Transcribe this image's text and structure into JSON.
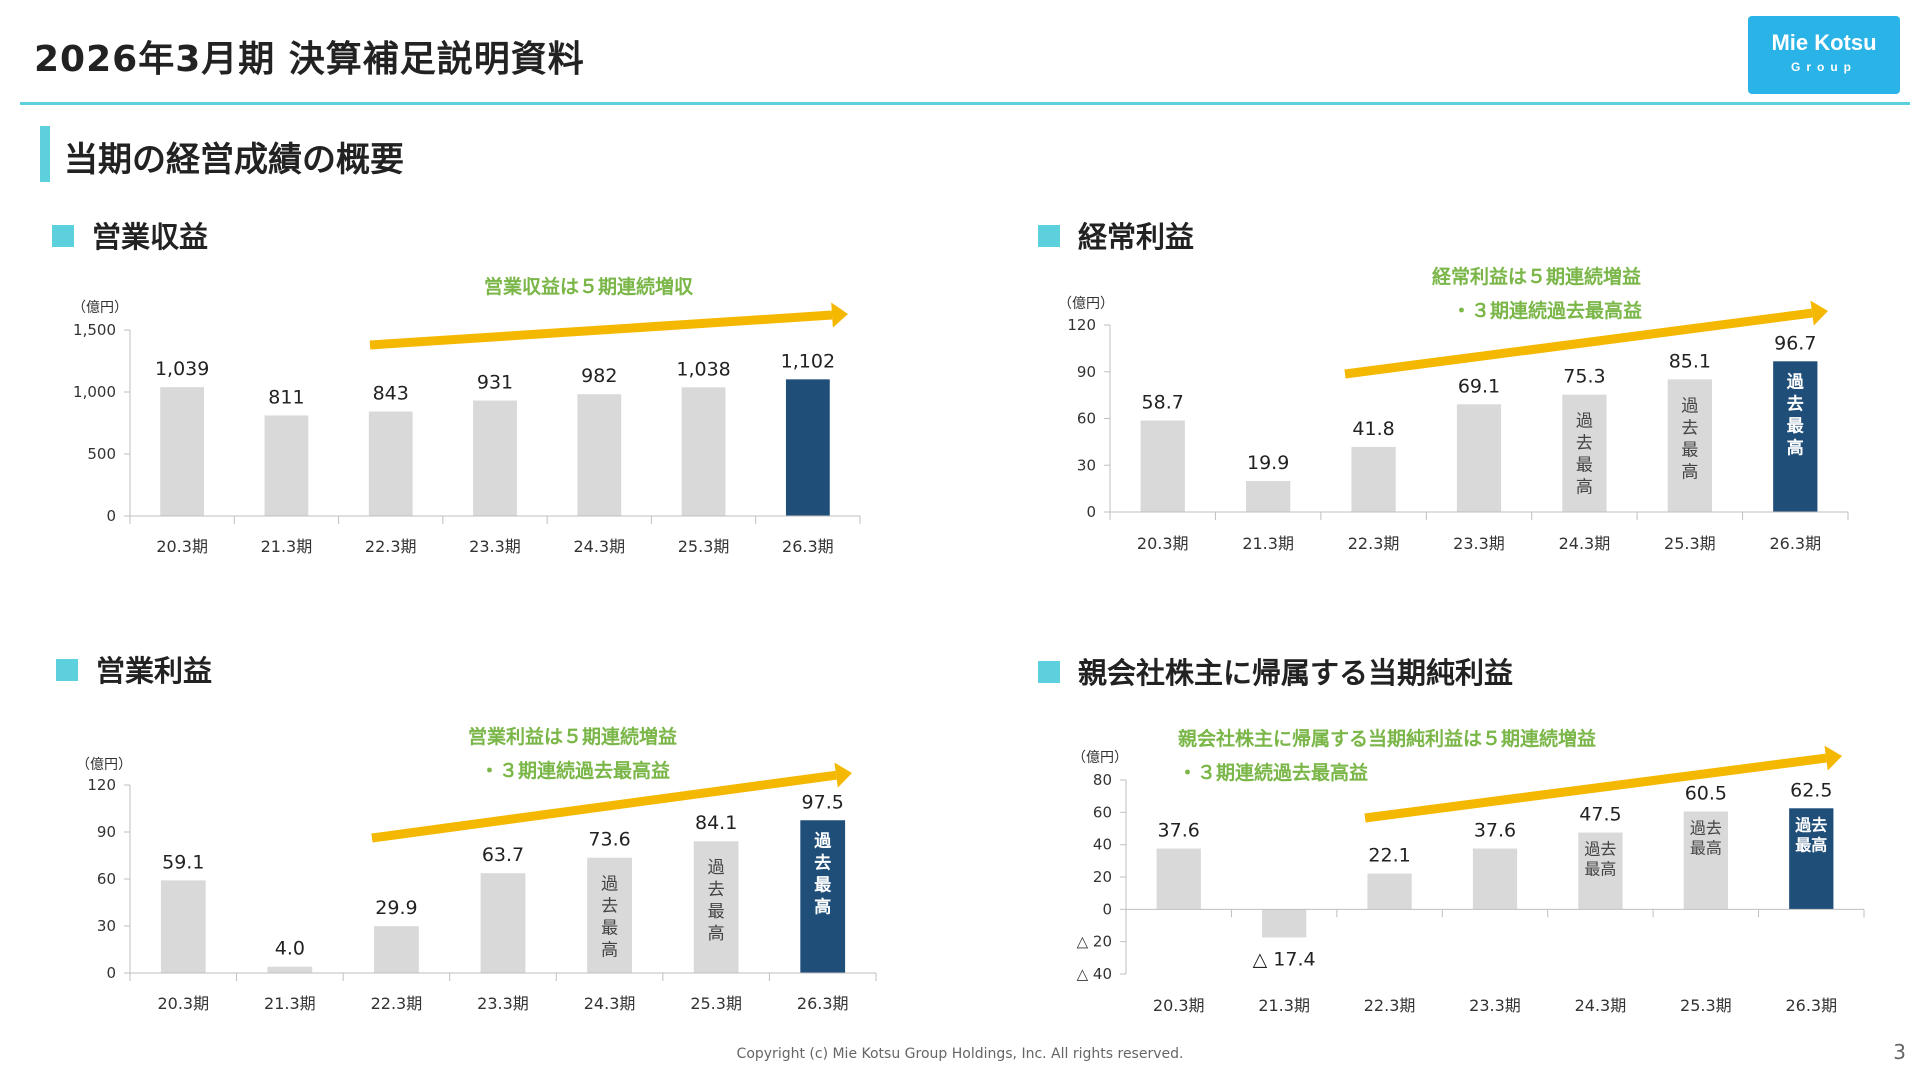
{
  "header": {
    "title": "2026年3月期 決算補足説明資料",
    "logo_line1": "Mie Kotsu",
    "logo_line2": "Group"
  },
  "section_title": "当期の経営成績の概要",
  "footer": "Copyright (c) Mie Kotsu Group Holdings, Inc. All rights reserved.",
  "page_number": "3",
  "colors": {
    "accent": "#5cd0dd",
    "bar_default": "#d9d9d9",
    "bar_highlight": "#1f4e79",
    "arrow": "#f5b800",
    "annotation": "#7ab648"
  },
  "panels": [
    {
      "title": "営業収益",
      "annotation": [
        "営業収益は５期連続増収"
      ]
    },
    {
      "title": "経常利益",
      "annotation": [
        "経常利益は５期連続増益",
        "・３期連続過去最高益"
      ]
    },
    {
      "title": "営業利益",
      "annotation": [
        "営業利益は５期連続増益",
        "・３期連続過去最高益"
      ]
    },
    {
      "title": "親会社株主に帰属する当期純利益",
      "annotation": [
        "親会社株主に帰属する当期純利益は５期連続増益",
        "・３期連続過去最高益"
      ]
    }
  ],
  "chart_data": [
    {
      "type": "bar",
      "title": "営業収益",
      "unit_label": "（億円）",
      "categories": [
        "20.3期",
        "21.3期",
        "22.3期",
        "23.3期",
        "24.3期",
        "25.3期",
        "26.3期"
      ],
      "values": [
        1039,
        811,
        843,
        931,
        982,
        1038,
        1102
      ],
      "value_labels": [
        "1,039",
        "811",
        "843",
        "931",
        "982",
        "1,038",
        "1,102"
      ],
      "ylim": [
        0,
        1500
      ],
      "yticks": [
        0,
        500,
        1000,
        1500
      ],
      "ytick_labels": [
        "0",
        "500",
        "1,000",
        "1,500"
      ],
      "highlight": [
        false,
        false,
        false,
        false,
        false,
        false,
        true
      ],
      "bar_notes": [
        "",
        "",
        "",
        "",
        "",
        "",
        ""
      ]
    },
    {
      "type": "bar",
      "title": "経常利益",
      "unit_label": "（億円）",
      "categories": [
        "20.3期",
        "21.3期",
        "22.3期",
        "23.3期",
        "24.3期",
        "25.3期",
        "26.3期"
      ],
      "values": [
        58.7,
        19.9,
        41.8,
        69.1,
        75.3,
        85.1,
        96.7
      ],
      "value_labels": [
        "58.7",
        "19.9",
        "41.8",
        "69.1",
        "75.3",
        "85.1",
        "96.7"
      ],
      "ylim": [
        0,
        120
      ],
      "yticks": [
        0,
        30,
        60,
        90,
        120
      ],
      "ytick_labels": [
        "0",
        "30",
        "60",
        "90",
        "120"
      ],
      "highlight": [
        false,
        false,
        false,
        false,
        false,
        false,
        true
      ],
      "bar_notes": [
        "",
        "",
        "",
        "",
        "過去最高",
        "過去最高",
        "過去最高"
      ]
    },
    {
      "type": "bar",
      "title": "営業利益",
      "unit_label": "（億円）",
      "categories": [
        "20.3期",
        "21.3期",
        "22.3期",
        "23.3期",
        "24.3期",
        "25.3期",
        "26.3期"
      ],
      "values": [
        59.1,
        4.0,
        29.9,
        63.7,
        73.6,
        84.1,
        97.5
      ],
      "value_labels": [
        "59.1",
        "4.0",
        "29.9",
        "63.7",
        "73.6",
        "84.1",
        "97.5"
      ],
      "ylim": [
        0,
        120
      ],
      "yticks": [
        0,
        30,
        60,
        90,
        120
      ],
      "ytick_labels": [
        "0",
        "30",
        "60",
        "90",
        "120"
      ],
      "highlight": [
        false,
        false,
        false,
        false,
        false,
        false,
        true
      ],
      "bar_notes": [
        "",
        "",
        "",
        "",
        "過去最高",
        "過去最高",
        "過去最高"
      ]
    },
    {
      "type": "bar",
      "title": "親会社株主に帰属する当期純利益",
      "unit_label": "（億円）",
      "categories": [
        "20.3期",
        "21.3期",
        "22.3期",
        "23.3期",
        "24.3期",
        "25.3期",
        "26.3期"
      ],
      "values": [
        37.6,
        -17.4,
        22.1,
        37.6,
        47.5,
        60.5,
        62.5
      ],
      "value_labels": [
        "37.6",
        "△ 17.4",
        "22.1",
        "37.6",
        "47.5",
        "60.5",
        "62.5"
      ],
      "ylim": [
        -40,
        80
      ],
      "yticks": [
        -40,
        -20,
        0,
        20,
        40,
        60,
        80
      ],
      "ytick_labels": [
        "△ 40",
        "△ 20",
        "0",
        "20",
        "40",
        "60",
        "80"
      ],
      "highlight": [
        false,
        false,
        false,
        false,
        false,
        false,
        true
      ],
      "bar_notes": [
        "",
        "",
        "",
        "",
        "過去最高",
        "過去最高",
        "過去最高"
      ]
    }
  ]
}
